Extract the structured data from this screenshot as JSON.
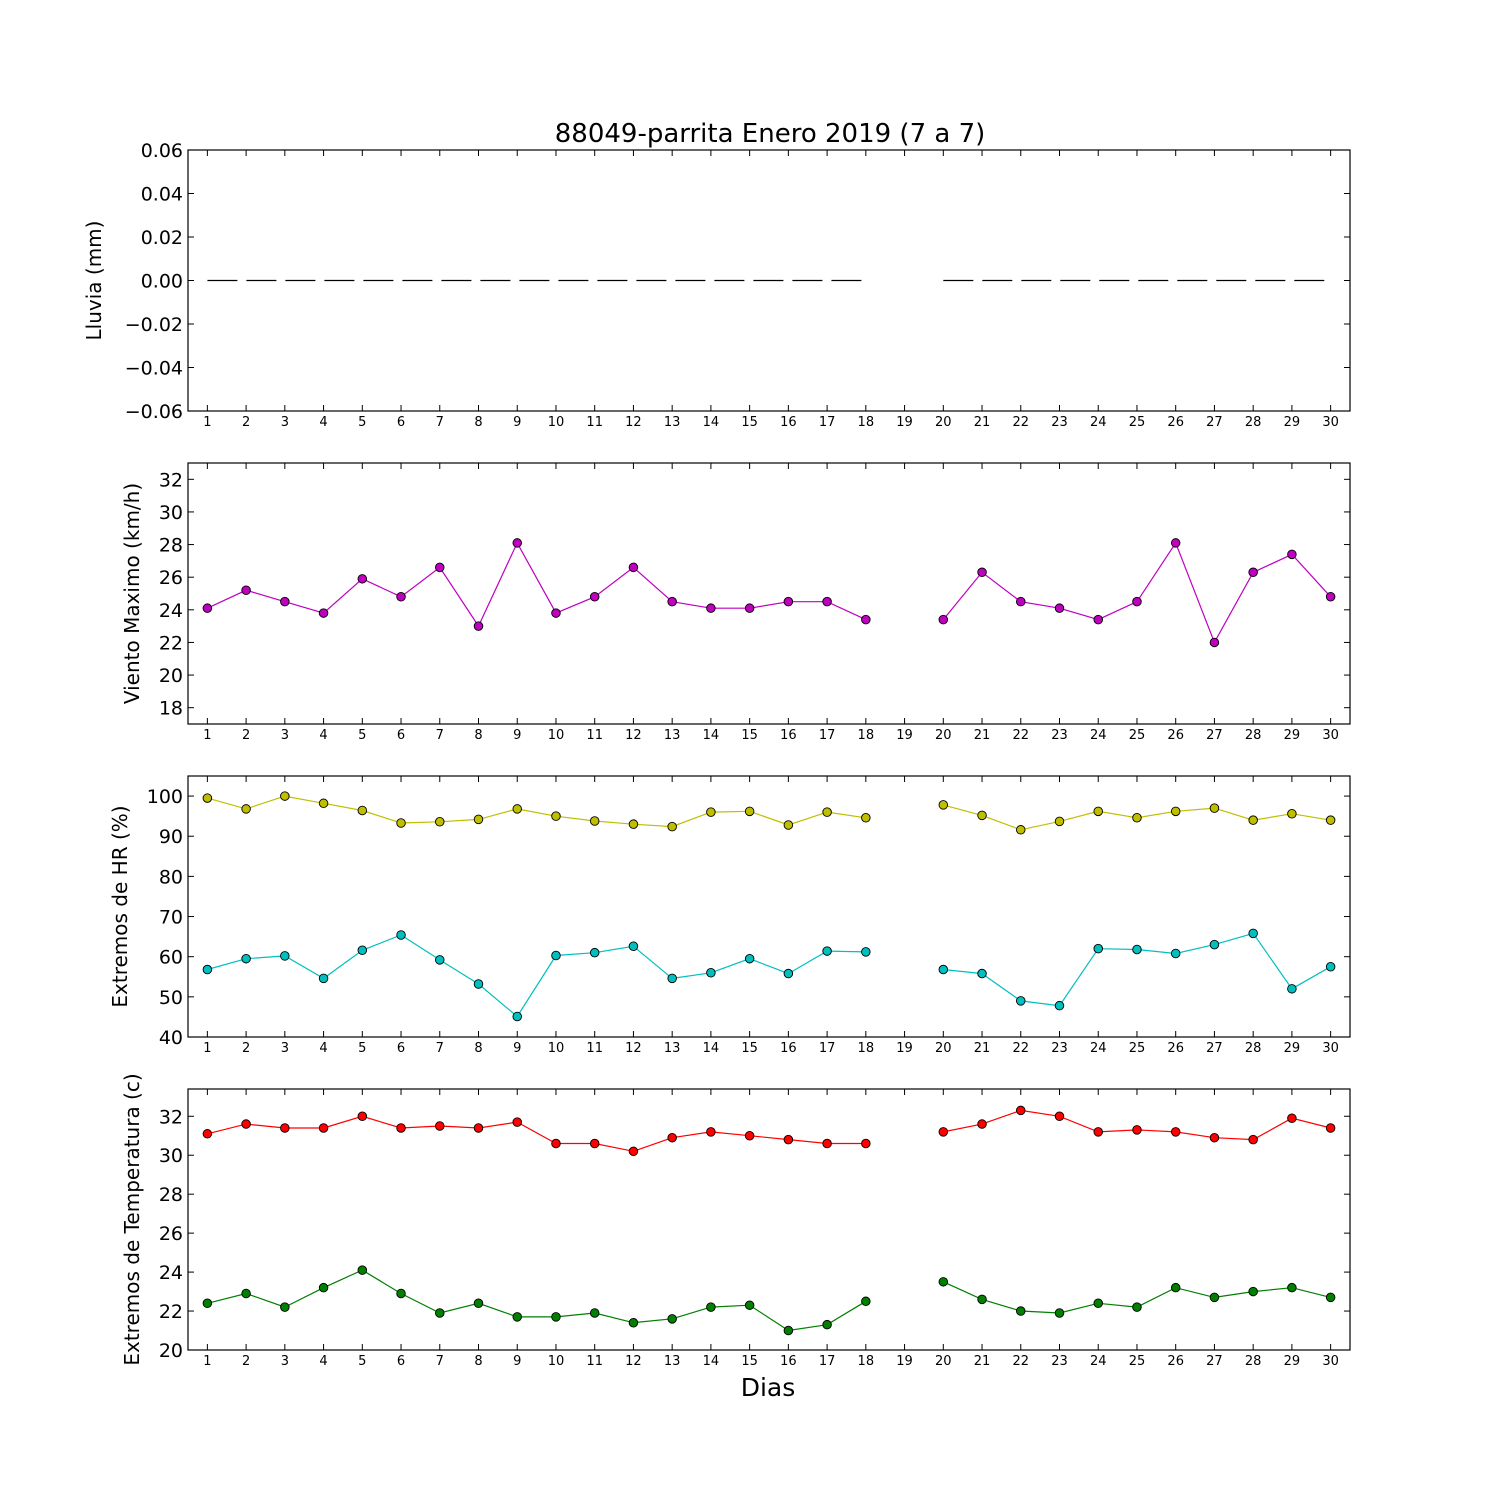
{
  "chart_data": {
    "type": "line",
    "title": "88049-parrita Enero 2019  (7 a 7)",
    "xlabel": "Dias",
    "x": [
      1,
      2,
      3,
      4,
      5,
      6,
      7,
      8,
      9,
      10,
      11,
      12,
      13,
      14,
      15,
      16,
      17,
      18,
      19,
      20,
      21,
      22,
      23,
      24,
      25,
      26,
      27,
      28,
      29,
      30
    ],
    "xlim": [
      0.5,
      30.5
    ],
    "panels": [
      {
        "id": "lluvia",
        "ylabel": "Lluvia (mm)",
        "ylim": [
          -0.06,
          0.06
        ],
        "yticks": [
          0.06,
          0.04,
          0.02,
          0.0,
          -0.02,
          -0.04,
          -0.06
        ],
        "ytick_labels": [
          "0.06",
          "0.04",
          "0.02",
          "0.00",
          "−0.02",
          "−0.04",
          "−0.06"
        ],
        "series": [
          {
            "color": "#000000",
            "style": "dashed",
            "marker": false,
            "values": [
              0,
              0,
              0,
              0,
              0,
              0,
              0,
              0,
              0,
              0,
              0,
              0,
              0,
              0,
              0,
              0,
              0,
              0,
              null,
              0,
              0,
              0,
              0,
              0,
              0,
              0,
              0,
              0,
              0,
              0
            ]
          }
        ]
      },
      {
        "id": "viento",
        "ylabel": "Viento Maximo (km/h)",
        "ylim": [
          17,
          33
        ],
        "yticks": [
          32,
          30,
          28,
          26,
          24,
          22,
          20,
          18
        ],
        "ytick_labels": [
          "32",
          "30",
          "28",
          "26",
          "24",
          "22",
          "20",
          "18"
        ],
        "series": [
          {
            "color": "#bf00bf",
            "style": "solid",
            "marker": true,
            "values": [
              24.1,
              25.2,
              24.5,
              23.8,
              25.9,
              24.8,
              26.6,
              23.0,
              28.1,
              23.8,
              24.8,
              26.6,
              24.5,
              24.1,
              24.1,
              24.5,
              24.5,
              23.4,
              null,
              23.4,
              26.3,
              24.5,
              24.1,
              23.4,
              24.5,
              28.1,
              22.0,
              26.3,
              27.4,
              24.8
            ]
          }
        ]
      },
      {
        "id": "hr",
        "ylabel": "Extremos de HR (%)",
        "ylim": [
          40,
          105
        ],
        "yticks": [
          100,
          90,
          80,
          70,
          60,
          50,
          40
        ],
        "ytick_labels": [
          "100",
          "90",
          "80",
          "70",
          "60",
          "50",
          "40"
        ],
        "series": [
          {
            "color": "#bfbf00",
            "style": "solid",
            "marker": true,
            "values": [
              99.5,
              96.8,
              100,
              98.2,
              96.4,
              93.3,
              93.6,
              94.2,
              96.8,
              95.0,
              93.8,
              93.0,
              92.4,
              96.0,
              96.2,
              92.8,
              96.0,
              94.6,
              null,
              97.8,
              95.2,
              91.6,
              93.7,
              96.2,
              94.6,
              96.2,
              97.0,
              94.0,
              95.6,
              94.0
            ]
          },
          {
            "color": "#00bfbf",
            "style": "solid",
            "marker": true,
            "values": [
              56.8,
              59.5,
              60.2,
              54.6,
              61.6,
              65.4,
              59.2,
              53.2,
              45.1,
              60.3,
              61.0,
              62.6,
              54.6,
              56.0,
              59.5,
              55.8,
              61.4,
              61.2,
              null,
              56.8,
              55.8,
              49.0,
              47.8,
              62.0,
              61.8,
              60.8,
              63.0,
              65.8,
              52.0,
              57.5
            ]
          }
        ]
      },
      {
        "id": "temperatura",
        "ylabel": "Extremos de Temperatura (c)",
        "ylim": [
          20,
          33.4
        ],
        "yticks": [
          32,
          30,
          28,
          26,
          24,
          22,
          20
        ],
        "ytick_labels": [
          "32",
          "30",
          "28",
          "26",
          "24",
          "22",
          "20"
        ],
        "series": [
          {
            "color": "#ff0000",
            "style": "solid",
            "marker": true,
            "values": [
              31.1,
              31.6,
              31.4,
              31.4,
              32.0,
              31.4,
              31.5,
              31.4,
              31.7,
              30.6,
              30.6,
              30.2,
              30.9,
              31.2,
              31.0,
              30.8,
              30.6,
              30.6,
              null,
              31.2,
              31.6,
              32.3,
              32.0,
              31.2,
              31.3,
              31.2,
              30.9,
              30.8,
              31.9,
              31.4
            ]
          },
          {
            "color": "#007f00",
            "style": "solid",
            "marker": true,
            "values": [
              22.4,
              22.9,
              22.2,
              23.2,
              24.1,
              22.9,
              21.9,
              22.4,
              21.7,
              21.7,
              21.9,
              21.4,
              21.6,
              22.2,
              22.3,
              21.0,
              21.3,
              22.5,
              null,
              23.5,
              22.6,
              22.0,
              21.9,
              22.4,
              22.2,
              23.2,
              22.7,
              23.0,
              23.2,
              22.7
            ]
          }
        ]
      }
    ]
  }
}
